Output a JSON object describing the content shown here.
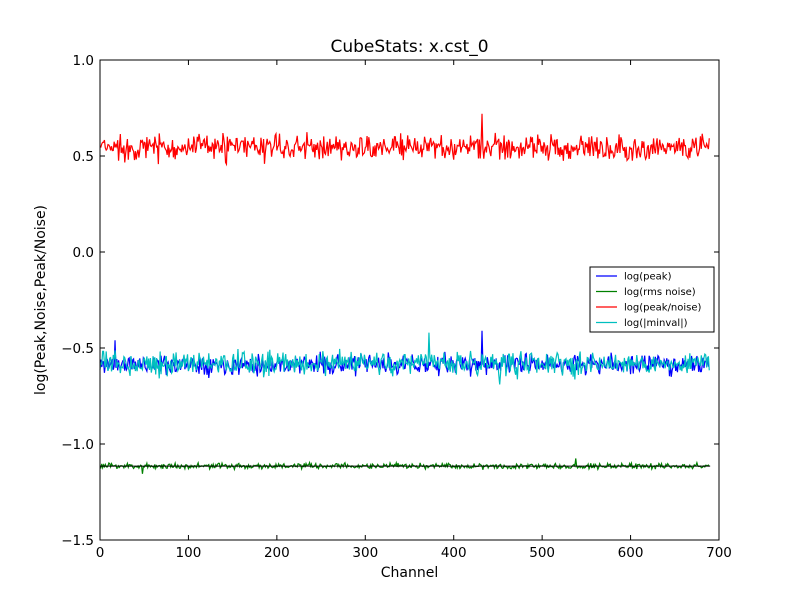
{
  "chart_data": {
    "type": "line",
    "title": "CubeStats: x.cst_0",
    "xlabel": "Channel",
    "ylabel": "log(Peak,Noise,Peak/Noise)",
    "xlim": [
      0,
      700
    ],
    "ylim": [
      -1.5,
      1.0
    ],
    "xticks": [
      0,
      100,
      200,
      300,
      400,
      500,
      600,
      700
    ],
    "yticks": [
      -1.5,
      -1.0,
      -0.5,
      0.0,
      0.5,
      1.0
    ],
    "xtick_labels": [
      "0",
      "100",
      "200",
      "300",
      "400",
      "500",
      "600",
      "700"
    ],
    "ytick_labels": [
      "−1.5",
      "−1.0",
      "−0.5",
      "0.0",
      "0.5",
      "1.0"
    ],
    "grid": false,
    "legend_position": "right",
    "n_channels": 690,
    "series": [
      {
        "name": "log(peak)",
        "color": "#0000ff",
        "style": "noisy",
        "baseline": -0.585,
        "spread": 0.075,
        "seed": 11,
        "spikes": [
          [
            432,
            -0.41
          ],
          [
            17,
            -0.46
          ]
        ]
      },
      {
        "name": "log(rms noise)",
        "color": "#008000",
        "style": "noisy",
        "baseline": -1.115,
        "spread": 0.022,
        "seed": 23,
        "spikes": [
          [
            48,
            -1.155
          ],
          [
            538,
            -1.075
          ]
        ]
      },
      {
        "name": "log(peak/noise)",
        "color": "#ff0000",
        "style": "noisy",
        "baseline": 0.545,
        "spread": 0.1,
        "seed": 37,
        "spikes": [
          [
            432,
            0.72
          ]
        ]
      },
      {
        "name": "log(|minval|)",
        "color": "#00bfbf",
        "style": "noisy",
        "baseline": -0.58,
        "spread": 0.09,
        "seed": 53,
        "spikes": [
          [
            372,
            -0.42
          ],
          [
            452,
            -0.69
          ]
        ]
      }
    ],
    "reference_line": {
      "color": "#000000",
      "y": -1.115,
      "x_range": [
        0,
        690
      ]
    }
  }
}
